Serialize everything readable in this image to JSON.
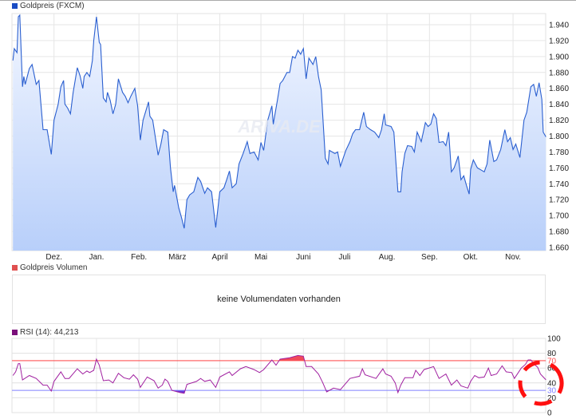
{
  "price_legend": {
    "label": "Goldpreis (FXCM)",
    "color": "#1a4cc4"
  },
  "volume_legend": {
    "label": "Goldpreis Volumen",
    "color": "#e05050"
  },
  "volume_message": "keine Volumendaten vorhanden",
  "rsi_legend": {
    "label": "RSI (14): 44,213",
    "color": "#7a0f7a"
  },
  "watermark": "ARIVA.DE",
  "chart_data": [
    {
      "type": "area",
      "series": [
        {
          "name": "Goldpreis (FXCM)",
          "color": "#2a5fd0"
        }
      ],
      "ylim": [
        1650,
        1960
      ],
      "yticks": [
        1660,
        1680,
        1700,
        1720,
        1740,
        1760,
        1780,
        1800,
        1820,
        1840,
        1860,
        1880,
        1900,
        1920,
        1940
      ],
      "ytick_labels": [
        "1.660",
        "1.680",
        "1.700",
        "1.720",
        "1.740",
        "1.760",
        "1.780",
        "1.800",
        "1.820",
        "1.840",
        "1.860",
        "1.880",
        "1.900",
        "1.920",
        "1.940"
      ],
      "xlim": [
        "2020-11-01",
        "2021-11-26"
      ],
      "xticks": [
        "2020-12-01",
        "2021-01-01",
        "2021-02-01",
        "2021-03-01",
        "2021-04-01",
        "2021-05-01",
        "2021-06-01",
        "2021-07-01",
        "2021-08-01",
        "2021-09-01",
        "2021-10-01",
        "2021-11-01"
      ],
      "xtick_labels": [
        "Dez.",
        "Jan.",
        "Feb.",
        "März",
        "April",
        "Mai",
        "Juni",
        "Juli",
        "Aug.",
        "Sep.",
        "Okt.",
        "Nov."
      ],
      "grid": true,
      "points": [
        [
          "2020-11-01",
          1895
        ],
        [
          "2020-11-02",
          1910
        ],
        [
          "2020-11-04",
          1905
        ],
        [
          "2020-11-05",
          1950
        ],
        [
          "2020-11-06",
          1952
        ],
        [
          "2020-11-08",
          1862
        ],
        [
          "2020-11-09",
          1875
        ],
        [
          "2020-11-10",
          1865
        ],
        [
          "2020-11-13",
          1885
        ],
        [
          "2020-11-15",
          1890
        ],
        [
          "2020-11-18",
          1865
        ],
        [
          "2020-11-20",
          1870
        ],
        [
          "2020-11-23",
          1808
        ],
        [
          "2020-11-26",
          1808
        ],
        [
          "2020-11-29",
          1777
        ],
        [
          "2020-12-01",
          1820
        ],
        [
          "2020-12-04",
          1840
        ],
        [
          "2020-12-06",
          1862
        ],
        [
          "2020-12-08",
          1870
        ],
        [
          "2020-12-09",
          1840
        ],
        [
          "2020-12-11",
          1835
        ],
        [
          "2020-12-13",
          1828
        ],
        [
          "2020-12-15",
          1855
        ],
        [
          "2020-12-18",
          1886
        ],
        [
          "2020-12-20",
          1876
        ],
        [
          "2020-12-22",
          1860
        ],
        [
          "2020-12-23",
          1875
        ],
        [
          "2020-12-25",
          1880
        ],
        [
          "2020-12-27",
          1875
        ],
        [
          "2020-12-29",
          1895
        ],
        [
          "2020-12-30",
          1920
        ],
        [
          "2021-01-01",
          1950
        ],
        [
          "2021-01-03",
          1918
        ],
        [
          "2021-01-04",
          1915
        ],
        [
          "2021-01-06",
          1848
        ],
        [
          "2021-01-08",
          1843
        ],
        [
          "2021-01-09",
          1855
        ],
        [
          "2021-01-11",
          1845
        ],
        [
          "2021-01-13",
          1828
        ],
        [
          "2021-01-15",
          1840
        ],
        [
          "2021-01-17",
          1872
        ],
        [
          "2021-01-20",
          1855
        ],
        [
          "2021-01-22",
          1850
        ],
        [
          "2021-01-24",
          1842
        ],
        [
          "2021-01-26",
          1850
        ],
        [
          "2021-01-29",
          1860
        ],
        [
          "2021-01-31",
          1838
        ],
        [
          "2021-02-02",
          1795
        ],
        [
          "2021-02-04",
          1820
        ],
        [
          "2021-02-08",
          1843
        ],
        [
          "2021-02-09",
          1825
        ],
        [
          "2021-02-11",
          1820
        ],
        [
          "2021-02-15",
          1776
        ],
        [
          "2021-02-17",
          1790
        ],
        [
          "2021-02-19",
          1808
        ],
        [
          "2021-02-22",
          1805
        ],
        [
          "2021-02-24",
          1760
        ],
        [
          "2021-02-26",
          1730
        ],
        [
          "2021-02-27",
          1738
        ],
        [
          "2021-03-02",
          1710
        ],
        [
          "2021-03-04",
          1698
        ],
        [
          "2021-03-06",
          1684
        ],
        [
          "2021-03-08",
          1720
        ],
        [
          "2021-03-10",
          1726
        ],
        [
          "2021-03-13",
          1730
        ],
        [
          "2021-03-16",
          1748
        ],
        [
          "2021-03-18",
          1743
        ],
        [
          "2021-03-21",
          1728
        ],
        [
          "2021-03-23",
          1735
        ],
        [
          "2021-03-26",
          1730
        ],
        [
          "2021-03-29",
          1685
        ],
        [
          "2021-04-01",
          1730
        ],
        [
          "2021-04-04",
          1735
        ],
        [
          "2021-04-06",
          1745
        ],
        [
          "2021-04-08",
          1756
        ],
        [
          "2021-04-10",
          1735
        ],
        [
          "2021-04-13",
          1740
        ],
        [
          "2021-04-15",
          1765
        ],
        [
          "2021-04-18",
          1778
        ],
        [
          "2021-04-21",
          1793
        ],
        [
          "2021-04-23",
          1778
        ],
        [
          "2021-04-26",
          1780
        ],
        [
          "2021-04-29",
          1770
        ],
        [
          "2021-05-01",
          1792
        ],
        [
          "2021-05-03",
          1782
        ],
        [
          "2021-05-06",
          1820
        ],
        [
          "2021-05-09",
          1838
        ],
        [
          "2021-05-10",
          1815
        ],
        [
          "2021-05-13",
          1845
        ],
        [
          "2021-05-15",
          1866
        ],
        [
          "2021-05-17",
          1870
        ],
        [
          "2021-05-20",
          1880
        ],
        [
          "2021-05-22",
          1880
        ],
        [
          "2021-05-24",
          1900
        ],
        [
          "2021-05-26",
          1898
        ],
        [
          "2021-05-28",
          1908
        ],
        [
          "2021-05-30",
          1903
        ],
        [
          "2021-06-01",
          1910
        ],
        [
          "2021-06-03",
          1872
        ],
        [
          "2021-06-05",
          1898
        ],
        [
          "2021-06-08",
          1890
        ],
        [
          "2021-06-10",
          1900
        ],
        [
          "2021-06-12",
          1875
        ],
        [
          "2021-06-14",
          1858
        ],
        [
          "2021-06-17",
          1772
        ],
        [
          "2021-06-19",
          1765
        ],
        [
          "2021-06-20",
          1782
        ],
        [
          "2021-06-24",
          1778
        ],
        [
          "2021-06-26",
          1780
        ],
        [
          "2021-06-28",
          1762
        ],
        [
          "2021-07-02",
          1782
        ],
        [
          "2021-07-05",
          1793
        ],
        [
          "2021-07-07",
          1803
        ],
        [
          "2021-07-09",
          1808
        ],
        [
          "2021-07-12",
          1808
        ],
        [
          "2021-07-15",
          1830
        ],
        [
          "2021-07-17",
          1812
        ],
        [
          "2021-07-20",
          1808
        ],
        [
          "2021-07-23",
          1805
        ],
        [
          "2021-07-26",
          1798
        ],
        [
          "2021-07-28",
          1808
        ],
        [
          "2021-07-30",
          1828
        ],
        [
          "2021-07-31",
          1814
        ],
        [
          "2021-08-04",
          1812
        ],
        [
          "2021-08-06",
          1805
        ],
        [
          "2021-08-09",
          1730
        ],
        [
          "2021-08-11",
          1730
        ],
        [
          "2021-08-12",
          1755
        ],
        [
          "2021-08-14",
          1778
        ],
        [
          "2021-08-16",
          1788
        ],
        [
          "2021-08-19",
          1787
        ],
        [
          "2021-08-21",
          1780
        ],
        [
          "2021-08-23",
          1805
        ],
        [
          "2021-08-26",
          1793
        ],
        [
          "2021-08-29",
          1817
        ],
        [
          "2021-08-31",
          1812
        ],
        [
          "2021-09-02",
          1815
        ],
        [
          "2021-09-04",
          1828
        ],
        [
          "2021-09-06",
          1822
        ],
        [
          "2021-09-08",
          1792
        ],
        [
          "2021-09-11",
          1793
        ],
        [
          "2021-09-13",
          1788
        ],
        [
          "2021-09-15",
          1805
        ],
        [
          "2021-09-17",
          1755
        ],
        [
          "2021-09-19",
          1760
        ],
        [
          "2021-09-22",
          1775
        ],
        [
          "2021-09-24",
          1745
        ],
        [
          "2021-09-26",
          1750
        ],
        [
          "2021-09-28",
          1738
        ],
        [
          "2021-09-30",
          1727
        ],
        [
          "2021-10-01",
          1758
        ],
        [
          "2021-10-03",
          1770
        ],
        [
          "2021-10-06",
          1760
        ],
        [
          "2021-10-09",
          1757
        ],
        [
          "2021-10-11",
          1755
        ],
        [
          "2021-10-13",
          1765
        ],
        [
          "2021-10-15",
          1795
        ],
        [
          "2021-10-18",
          1768
        ],
        [
          "2021-10-20",
          1770
        ],
        [
          "2021-10-23",
          1783
        ],
        [
          "2021-10-26",
          1808
        ],
        [
          "2021-10-28",
          1793
        ],
        [
          "2021-10-30",
          1798
        ],
        [
          "2021-11-01",
          1783
        ],
        [
          "2021-11-03",
          1790
        ],
        [
          "2021-11-06",
          1773
        ],
        [
          "2021-11-09",
          1820
        ],
        [
          "2021-11-11",
          1830
        ],
        [
          "2021-11-14",
          1862
        ],
        [
          "2021-11-16",
          1865
        ],
        [
          "2021-11-18",
          1850
        ],
        [
          "2021-11-20",
          1867
        ],
        [
          "2021-11-22",
          1846
        ],
        [
          "2021-11-23",
          1805
        ],
        [
          "2021-11-25",
          1799
        ]
      ]
    },
    {
      "type": "line",
      "series": [
        {
          "name": "RSI (14)",
          "color": "#a020a0"
        }
      ],
      "ylim": [
        0,
        100
      ],
      "yticks": [
        0,
        20,
        40,
        60,
        80,
        100
      ],
      "levels": [
        {
          "value": 70,
          "label": "70",
          "color": "#ff4d4d"
        },
        {
          "value": 30,
          "label": "30",
          "color": "#8080ff"
        }
      ],
      "overbought_fill": "#f04a5a",
      "oversold_fill": "#6a3ad8",
      "current_value": "44,213",
      "points": [
        [
          "2020-11-01",
          50
        ],
        [
          "2020-11-03",
          55
        ],
        [
          "2020-11-05",
          66
        ],
        [
          "2020-11-06",
          66
        ],
        [
          "2020-11-08",
          44
        ],
        [
          "2020-11-13",
          50
        ],
        [
          "2020-11-18",
          46
        ],
        [
          "2020-11-23",
          37
        ],
        [
          "2020-11-26",
          37
        ],
        [
          "2020-11-29",
          29
        ],
        [
          "2020-12-01",
          42
        ],
        [
          "2020-12-06",
          55
        ],
        [
          "2020-12-09",
          46
        ],
        [
          "2020-12-12",
          46
        ],
        [
          "2020-12-18",
          59
        ],
        [
          "2020-12-22",
          52
        ],
        [
          "2020-12-25",
          56
        ],
        [
          "2020-12-27",
          54
        ],
        [
          "2020-12-30",
          57
        ],
        [
          "2021-01-01",
          72
        ],
        [
          "2021-01-03",
          64
        ],
        [
          "2021-01-06",
          43
        ],
        [
          "2021-01-10",
          44
        ],
        [
          "2021-01-13",
          40
        ],
        [
          "2021-01-17",
          53
        ],
        [
          "2021-01-21",
          47
        ],
        [
          "2021-01-25",
          45
        ],
        [
          "2021-01-28",
          51
        ],
        [
          "2021-01-31",
          45
        ],
        [
          "2021-02-02",
          34
        ],
        [
          "2021-02-07",
          48
        ],
        [
          "2021-02-12",
          43
        ],
        [
          "2021-02-15",
          33
        ],
        [
          "2021-02-18",
          37
        ],
        [
          "2021-02-20",
          45
        ],
        [
          "2021-02-22",
          42
        ],
        [
          "2021-02-25",
          30
        ],
        [
          "2021-03-03",
          27
        ],
        [
          "2021-03-06",
          26
        ],
        [
          "2021-03-08",
          38
        ],
        [
          "2021-03-15",
          42
        ],
        [
          "2021-03-18",
          46
        ],
        [
          "2021-03-21",
          42
        ],
        [
          "2021-03-25",
          44
        ],
        [
          "2021-03-29",
          34
        ],
        [
          "2021-04-01",
          48
        ],
        [
          "2021-04-08",
          55
        ],
        [
          "2021-04-10",
          50
        ],
        [
          "2021-04-16",
          59
        ],
        [
          "2021-04-20",
          62
        ],
        [
          "2021-04-26",
          58
        ],
        [
          "2021-04-30",
          54
        ],
        [
          "2021-05-03",
          58
        ],
        [
          "2021-05-09",
          71
        ],
        [
          "2021-05-12",
          64
        ],
        [
          "2021-05-15",
          72
        ],
        [
          "2021-05-22",
          74
        ],
        [
          "2021-05-28",
          77
        ],
        [
          "2021-06-01",
          76
        ],
        [
          "2021-06-03",
          62
        ],
        [
          "2021-06-07",
          62
        ],
        [
          "2021-06-12",
          52
        ],
        [
          "2021-06-15",
          41
        ],
        [
          "2021-06-18",
          28
        ],
        [
          "2021-06-23",
          33
        ],
        [
          "2021-06-28",
          31
        ],
        [
          "2021-07-05",
          46
        ],
        [
          "2021-07-12",
          49
        ],
        [
          "2021-07-14",
          59
        ],
        [
          "2021-07-16",
          51
        ],
        [
          "2021-07-24",
          46
        ],
        [
          "2021-07-29",
          59
        ],
        [
          "2021-07-31",
          52
        ],
        [
          "2021-08-04",
          49
        ],
        [
          "2021-08-07",
          40
        ],
        [
          "2021-08-09",
          27
        ],
        [
          "2021-08-11",
          37
        ],
        [
          "2021-08-14",
          47
        ],
        [
          "2021-08-20",
          47
        ],
        [
          "2021-08-22",
          57
        ],
        [
          "2021-08-25",
          50
        ],
        [
          "2021-08-28",
          58
        ],
        [
          "2021-09-04",
          62
        ],
        [
          "2021-09-08",
          46
        ],
        [
          "2021-09-13",
          52
        ],
        [
          "2021-09-17",
          37
        ],
        [
          "2021-09-21",
          44
        ],
        [
          "2021-09-24",
          36
        ],
        [
          "2021-09-29",
          33
        ],
        [
          "2021-10-01",
          42
        ],
        [
          "2021-10-04",
          50
        ],
        [
          "2021-10-07",
          47
        ],
        [
          "2021-10-11",
          48
        ],
        [
          "2021-10-14",
          60
        ],
        [
          "2021-10-16",
          50
        ],
        [
          "2021-10-20",
          52
        ],
        [
          "2021-10-24",
          63
        ],
        [
          "2021-10-27",
          55
        ],
        [
          "2021-10-31",
          54
        ],
        [
          "2021-11-02",
          46
        ],
        [
          "2021-11-07",
          60
        ],
        [
          "2021-11-10",
          65
        ],
        [
          "2021-11-12",
          71
        ],
        [
          "2021-11-14",
          71
        ],
        [
          "2021-11-16",
          66
        ],
        [
          "2021-11-19",
          61
        ],
        [
          "2021-11-21",
          52
        ],
        [
          "2021-11-25",
          44.2
        ]
      ]
    }
  ]
}
